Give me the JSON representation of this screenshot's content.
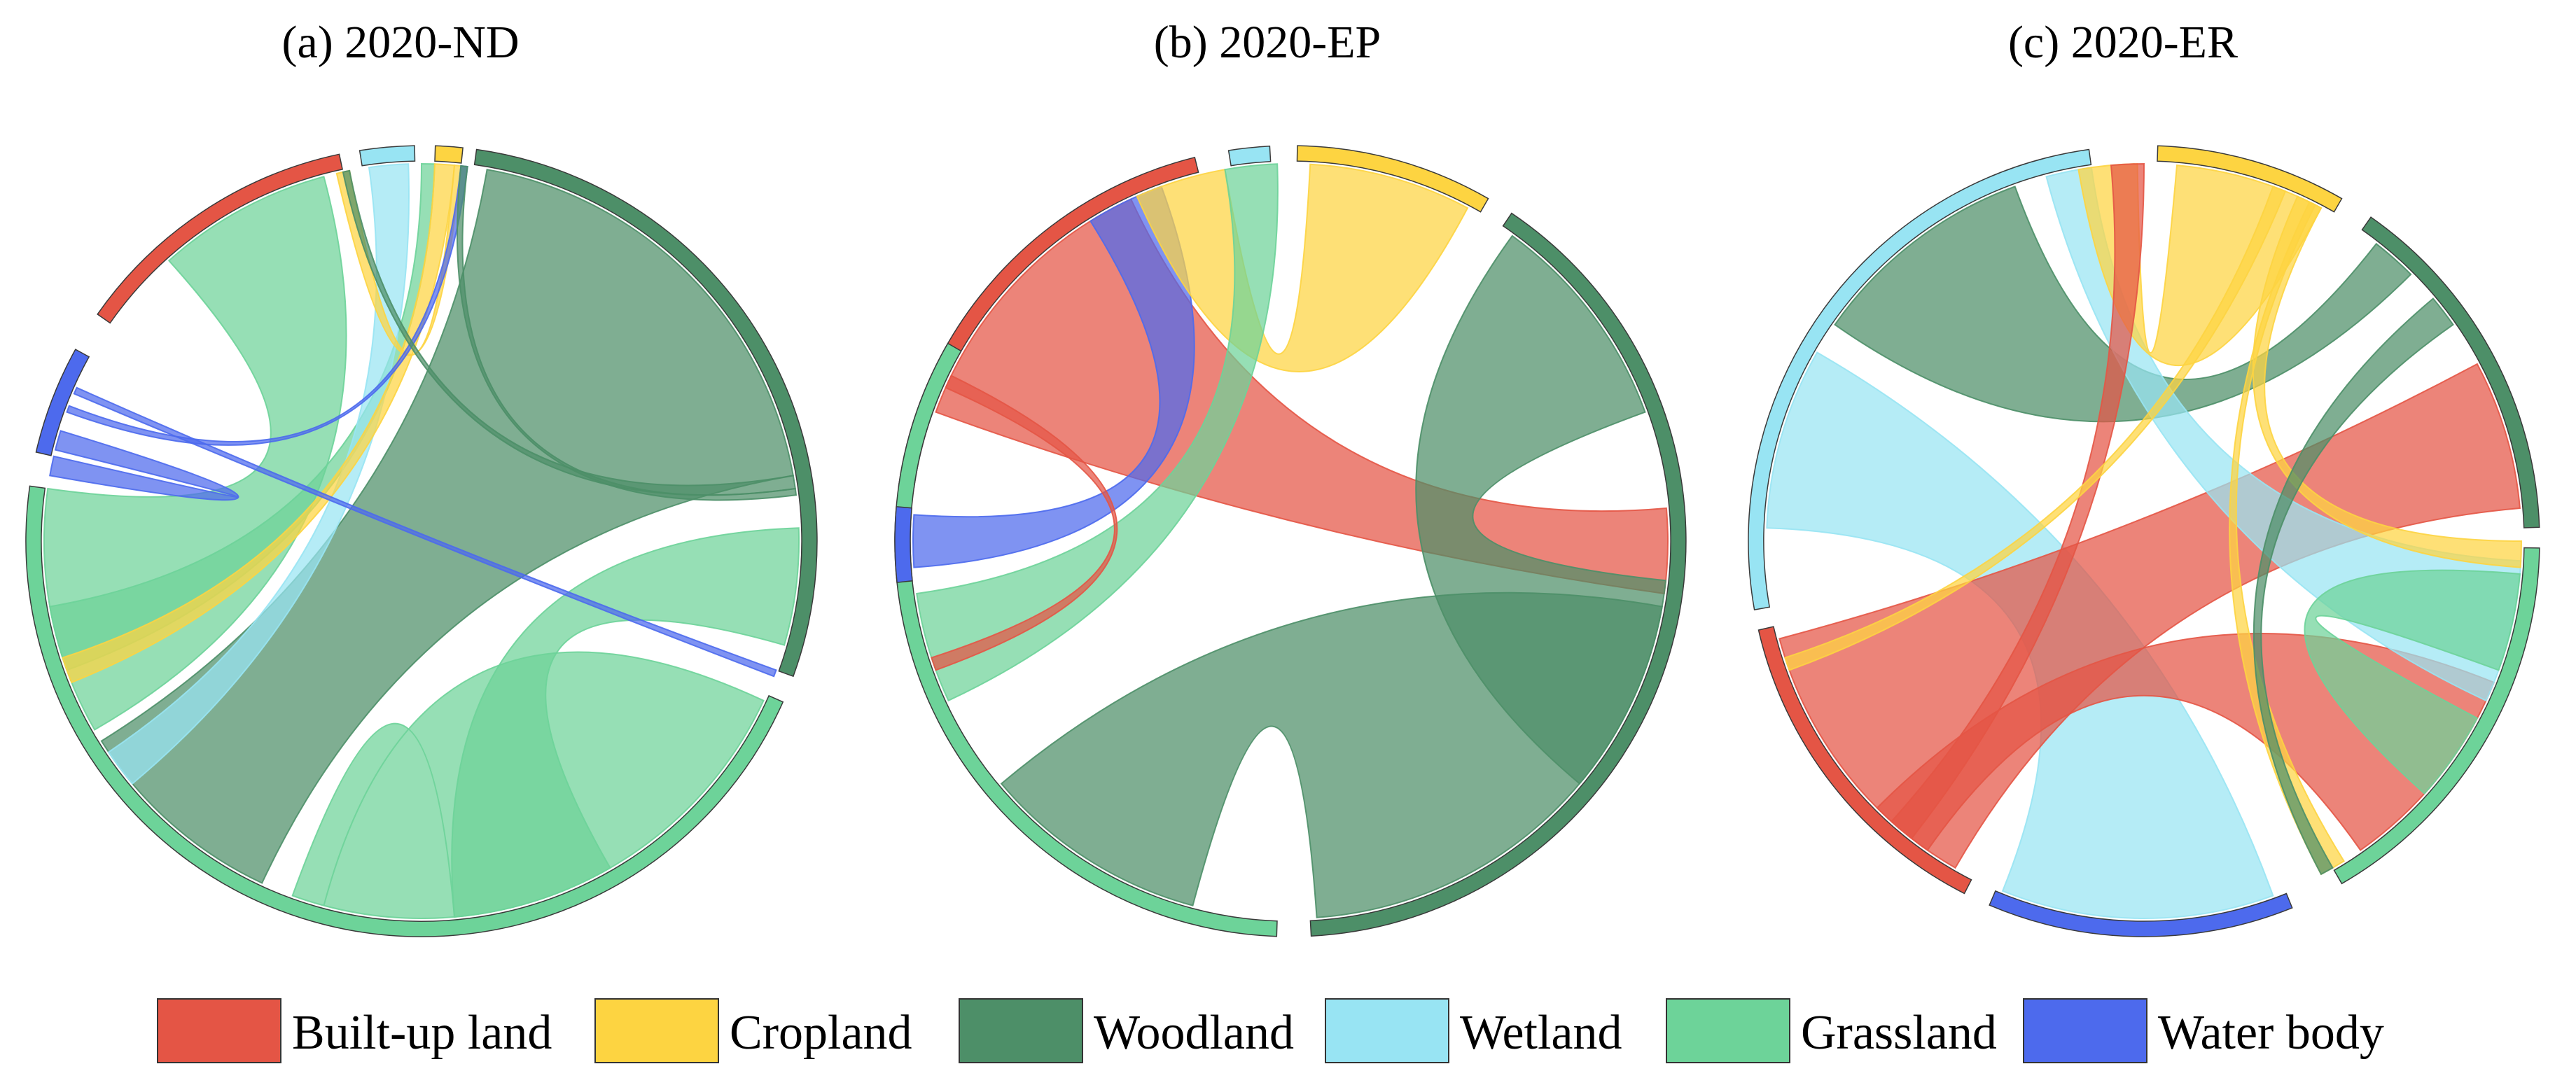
{
  "chart_data": {
    "type": "chord",
    "legend": {
      "placement": "bottom",
      "items": [
        {
          "key": "built",
          "label": "Built-up land",
          "color": "#E45545"
        },
        {
          "key": "crop",
          "label": "Cropland",
          "color": "#FDD441"
        },
        {
          "key": "wood",
          "label": "Woodland",
          "color": "#4D8F68"
        },
        {
          "key": "wet",
          "label": "Wetland",
          "color": "#98E4F3"
        },
        {
          "key": "grass",
          "label": "Grassland",
          "color": "#6DD399"
        },
        {
          "key": "water",
          "label": "Water body",
          "color": "#4D6AED"
        }
      ]
    },
    "panels": [
      {
        "title": "(a) 2020-ND",
        "arcs": [
          {
            "cat": "built",
            "start": 305,
            "end": 348
          },
          {
            "cat": "wet",
            "start": 351,
            "end": 359
          },
          {
            "cat": "crop",
            "start": 2,
            "end": 6
          },
          {
            "cat": "wood",
            "start": 8,
            "end": 110
          },
          {
            "cat": "grass",
            "start": 114,
            "end": 278
          },
          {
            "cat": "water",
            "start": 283,
            "end": 299
          }
        ],
        "chords": [
          {
            "from": "wood",
            "a1": 10,
            "a2": 80,
            "to": "grass",
            "b1": 205,
            "b2": 238,
            "width": 0.06
          },
          {
            "from": "grass",
            "a1": 115,
            "a2": 200,
            "to": "grass",
            "b1": 175,
            "b2": 195,
            "width": 0.06
          },
          {
            "from": "grass",
            "a1": 88,
            "a2": 106,
            "to": "grass",
            "b1": 150,
            "b2": 175,
            "width": 0.06
          },
          {
            "from": "grass",
            "a1": 240,
            "a2": 278,
            "to": "built",
            "b1": 318,
            "b2": 345,
            "width": 0.06
          },
          {
            "from": "grass",
            "a1": 360,
            "a2": 362,
            "to": "grass",
            "b1": 250,
            "b2": 260,
            "width": 0.06
          },
          {
            "from": "wet",
            "a1": 352,
            "a2": 358,
            "to": "grass",
            "b1": 230,
            "b2": 236,
            "width": 0.06
          },
          {
            "from": "crop",
            "a1": 2,
            "a2": 5,
            "to": "grass",
            "b1": 248,
            "b2": 252,
            "width": 0.06
          },
          {
            "from": "crop",
            "a1": 347,
            "a2": 349,
            "to": "crop",
            "b1": 5,
            "b2": 6,
            "width": 0.06
          },
          {
            "from": "water",
            "a1": 284,
            "a2": 287,
            "to": "water",
            "b1": 280,
            "b2": 283,
            "width": 0.06
          },
          {
            "from": "water",
            "a1": 290,
            "a2": 291,
            "to": "crop",
            "b1": 6,
            "b2": 7,
            "width": 0.06
          },
          {
            "from": "water",
            "a1": 293,
            "a2": 294,
            "to": "wood",
            "b1": 110,
            "b2": 111,
            "width": 0.06
          },
          {
            "from": "wood",
            "a1": 348,
            "a2": 349,
            "to": "wood",
            "b1": 80,
            "b2": 82,
            "width": 0.06
          },
          {
            "from": "wood",
            "a1": 6,
            "a2": 7,
            "to": "wood",
            "b1": 82,
            "b2": 83,
            "width": 0.06
          }
        ]
      },
      {
        "title": "(b) 2020-EP",
        "arcs": [
          {
            "cat": "built",
            "start": 278,
            "end": 346
          },
          {
            "cat": "wet",
            "start": 351,
            "end": 357
          },
          {
            "cat": "crop",
            "start": 1,
            "end": 30
          },
          {
            "cat": "wood",
            "start": 34,
            "end": 177
          },
          {
            "cat": "grass",
            "start": 182,
            "end": 300
          },
          {
            "cat": "water",
            "start": 264,
            "end": 275
          }
        ],
        "chords": [
          {
            "from": "built",
            "a1": 290,
            "a2": 335,
            "to": "wood",
            "b1": 85,
            "b2": 98,
            "width": 0.06
          },
          {
            "from": "wood",
            "a1": 36,
            "a2": 70,
            "to": "wood",
            "b1": 96,
            "b2": 130,
            "width": 0.06
          },
          {
            "from": "wood",
            "a1": 100,
            "a2": 176,
            "to": "grass",
            "b1": 195,
            "b2": 230,
            "width": 0.06
          },
          {
            "from": "water",
            "a1": 266,
            "a2": 274,
            "to": "water",
            "b1": 328,
            "b2": 340,
            "width": 0.06
          },
          {
            "from": "crop",
            "a1": 3,
            "a2": 28,
            "to": "crop",
            "b1": 336,
            "b2": 350,
            "width": 0.06
          },
          {
            "from": "grass",
            "a1": 350,
            "a2": 358,
            "to": "grass",
            "b1": 245,
            "b2": 262,
            "width": 0.06
          },
          {
            "from": "built",
            "a1": 294,
            "a2": 296,
            "to": "grass",
            "b1": 250,
            "b2": 252,
            "width": 0.06
          }
        ]
      },
      {
        "title": "(c) 2020-ER",
        "arcs": [
          {
            "cat": "wet",
            "start": 260,
            "end": 352
          },
          {
            "cat": "crop",
            "start": 2,
            "end": 30
          },
          {
            "cat": "wood",
            "start": 35,
            "end": 88
          },
          {
            "cat": "grass",
            "start": 91,
            "end": 150
          },
          {
            "cat": "water",
            "start": 158,
            "end": 203
          },
          {
            "cat": "built",
            "start": 207,
            "end": 257
          }
        ],
        "chords": [
          {
            "from": "wet",
            "a1": 272,
            "a2": 300,
            "to": "water",
            "b1": 160,
            "b2": 202,
            "width": 0.06
          },
          {
            "from": "built",
            "a1": 210,
            "a2": 255,
            "to": "built",
            "b1": 62,
            "b2": 85,
            "width": 0.06
          },
          {
            "from": "built",
            "a1": 215,
            "a2": 225,
            "to": "built",
            "b1": 112,
            "b2": 145,
            "width": 0.06
          },
          {
            "from": "wood",
            "a1": 38,
            "a2": 45,
            "to": "wet",
            "b1": 305,
            "b2": 340,
            "width": 0.06
          },
          {
            "from": "wet",
            "a1": 345,
            "a2": 352,
            "to": "grass",
            "b1": 93,
            "b2": 115,
            "width": 0.06
          },
          {
            "from": "grass",
            "a1": 95,
            "a2": 110,
            "to": "grass",
            "b1": 118,
            "b2": 132,
            "width": 0.06
          },
          {
            "from": "crop",
            "a1": 5,
            "a2": 28,
            "to": "crop",
            "b1": 350,
            "b2": 359,
            "width": 0.06
          },
          {
            "from": "built",
            "a1": 355,
            "a2": 360,
            "to": "built",
            "b1": 218,
            "b2": 222,
            "width": 0.06
          },
          {
            "from": "crop",
            "a1": 20,
            "a2": 22,
            "to": "crop",
            "b1": 250,
            "b2": 252,
            "width": 0.06
          },
          {
            "from": "crop",
            "a1": 24,
            "a2": 28,
            "to": "crop",
            "b1": 90,
            "b2": 94,
            "width": 0.06
          },
          {
            "from": "crop",
            "a1": 26,
            "a2": 27,
            "to": "crop",
            "b1": 148,
            "b2": 152,
            "width": 0.06
          },
          {
            "from": "wood",
            "a1": 50,
            "a2": 55,
            "to": "wood",
            "b1": 150,
            "b2": 152,
            "width": 0.06
          }
        ]
      }
    ]
  }
}
